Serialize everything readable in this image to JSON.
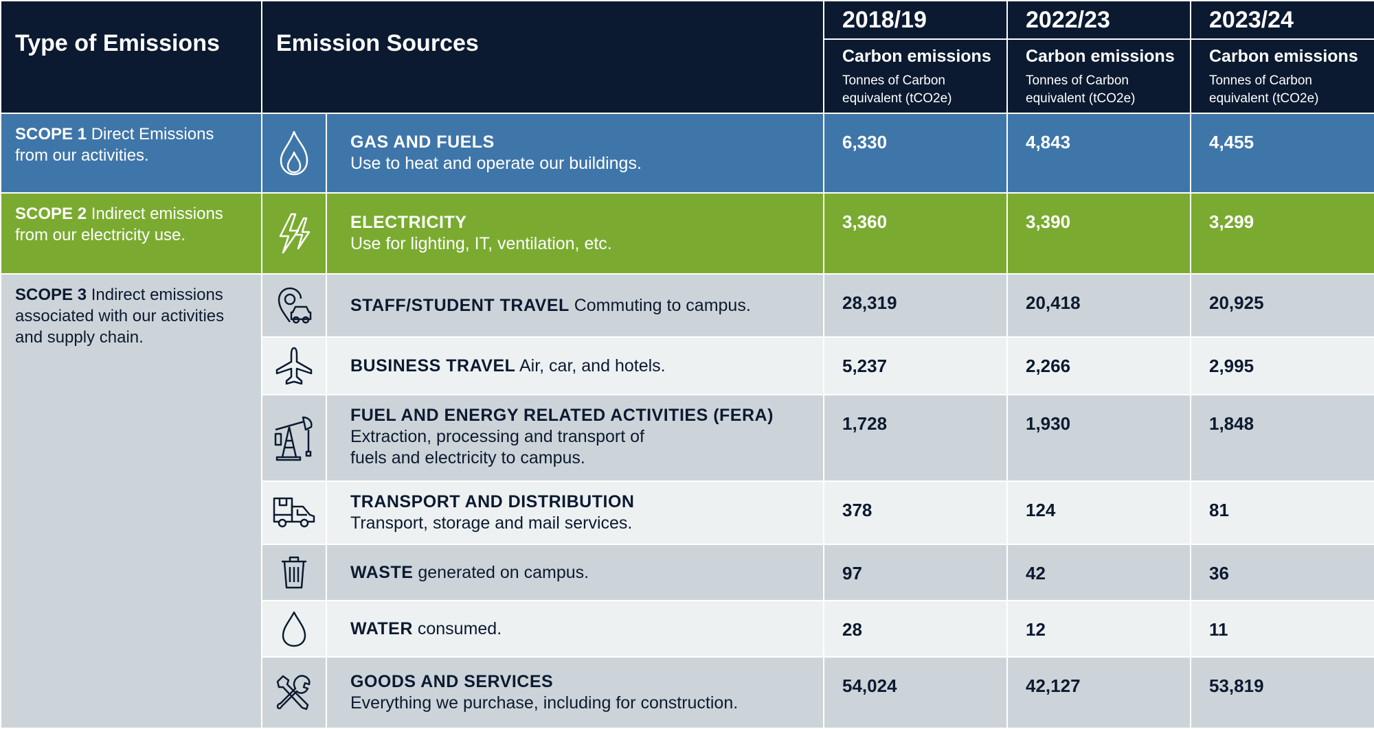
{
  "header": {
    "type_label": "Type of Emissions",
    "sources_label": "Emission Sources",
    "years": [
      "2018/19",
      "2022/23",
      "2023/24"
    ],
    "unit_title": "Carbon emissions",
    "unit_sub": "Tonnes of Carbon equivalent (tCO2e)"
  },
  "scopes": {
    "scope1": {
      "title": "SCOPE 1",
      "desc": " Direct Emissions from our activities."
    },
    "scope2": {
      "title": "SCOPE 2",
      "desc": " Indirect emissions from our electricity use."
    },
    "scope3": {
      "title": "SCOPE 3",
      "desc": " Indirect emissions associated with our activities and supply chain."
    }
  },
  "rows": [
    {
      "title": "GAS AND FUELS",
      "desc": "Use to heat and operate our buildings.",
      "icon": "flame-icon",
      "values": [
        "6,330",
        "4,843",
        "4,455"
      ]
    },
    {
      "title": "ELECTRICITY",
      "desc": "Use for lighting, IT, ventilation, etc.",
      "icon": "lightning-icon",
      "values": [
        "3,360",
        "3,390",
        "3,299"
      ]
    },
    {
      "title": "STAFF/STUDENT TRAVEL",
      "desc": " Commuting to campus.",
      "icon": "car-pin-icon",
      "values": [
        "28,319",
        "20,418",
        "20,925"
      ]
    },
    {
      "title": "BUSINESS TRAVEL",
      "desc": " Air, car, and hotels.",
      "icon": "airplane-icon",
      "values": [
        "5,237",
        "2,266",
        "2,995"
      ]
    },
    {
      "title": "FUEL AND ENERGY RELATED ACTIVITIES (FERA)",
      "desc": "Extraction, processing and transport of fuels and electricity to campus.",
      "icon": "oil-pump-icon",
      "values": [
        "1,728",
        "1,930",
        "1,848"
      ]
    },
    {
      "title": "TRANSPORT AND DISTRIBUTION",
      "desc": "Transport, storage and mail services.",
      "icon": "delivery-truck-icon",
      "values": [
        "378",
        "124",
        "81"
      ]
    },
    {
      "title": "WASTE",
      "desc": " generated on campus.",
      "icon": "trash-bin-icon",
      "values": [
        "97",
        "42",
        "36"
      ]
    },
    {
      "title": "WATER",
      "desc": " consumed.",
      "icon": "water-drop-icon",
      "values": [
        "28",
        "12",
        "11"
      ]
    },
    {
      "title": "GOODS AND SERVICES",
      "desc": "Everything we purchase, including for construction.",
      "icon": "tools-icon",
      "values": [
        "54,024",
        "42,127",
        "53,819"
      ]
    }
  ],
  "colors": {
    "header": "#0b1a30",
    "scope1": "#3f76a9",
    "scope2": "#7aab30",
    "scope3_dark": "#cdd4d9",
    "scope3_light": "#eef1f2"
  }
}
